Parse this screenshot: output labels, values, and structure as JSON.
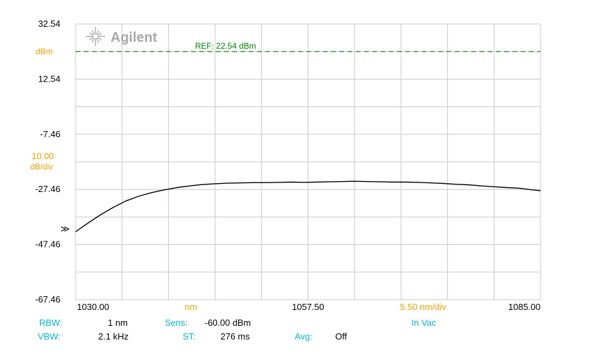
{
  "logo": {
    "text": "Agilent"
  },
  "marker": {
    "glyph": "≫"
  },
  "colors": {
    "grid": "#c8c8c8",
    "ref_line": "#008000",
    "trace": "#000000",
    "label_orange": "#e8a000",
    "label_cyan": "#00b4d8"
  },
  "chart_data": {
    "type": "line",
    "title": "",
    "xlabel": "nm",
    "ylabel": "dBm",
    "xlim": [
      1030.0,
      1085.0
    ],
    "ylim": [
      -67.46,
      32.54
    ],
    "grid": true,
    "x_divisions": 10,
    "y_divisions": 10,
    "y_ticks": [
      32.54,
      12.54,
      -7.46,
      -27.46,
      -47.46,
      -67.46
    ],
    "y_tick_labels": [
      "32.54",
      "12.54",
      "-7.46",
      "-27.46",
      "-47.46",
      "-67.46"
    ],
    "x_ticks": [
      1030.0,
      1057.5,
      1085.0
    ],
    "x_tick_labels": [
      "1030.00",
      "1057.50",
      "1085.00"
    ],
    "scale_label": "10.00",
    "scale_unit": "dB/div",
    "x_scale_label": "5.50 nm/div",
    "ref": {
      "value": 22.54,
      "label": "REF: 22.54 dBm"
    },
    "series": [
      {
        "x": [
          1030.0,
          1031.5,
          1033.0,
          1034.5,
          1036.0,
          1037.5,
          1039.0,
          1040.5,
          1042.0,
          1043.5,
          1045.0,
          1046.5,
          1048.0,
          1049.5,
          1051.0,
          1052.5,
          1054.0,
          1055.5,
          1057.0,
          1058.5,
          1060.0,
          1061.5,
          1063.0,
          1064.5,
          1066.0,
          1067.5,
          1069.0,
          1070.5,
          1072.0,
          1073.5,
          1075.0,
          1076.5,
          1078.0,
          1079.5,
          1081.0,
          1082.5,
          1084.0,
          1085.0
        ],
        "y": [
          -42.8,
          -39.6,
          -36.6,
          -33.9,
          -31.6,
          -29.9,
          -28.6,
          -27.6,
          -26.8,
          -26.2,
          -25.7,
          -25.4,
          -25.2,
          -25.1,
          -25.0,
          -25.0,
          -24.9,
          -24.8,
          -24.9,
          -24.8,
          -24.7,
          -24.6,
          -24.5,
          -24.6,
          -24.7,
          -24.8,
          -24.8,
          -24.9,
          -25.1,
          -25.3,
          -25.6,
          -25.8,
          -26.2,
          -26.5,
          -26.8,
          -27.0,
          -27.6,
          -27.9
        ]
      }
    ]
  },
  "settings": {
    "rbw": {
      "label": "RBW:",
      "value": "1 nm"
    },
    "vbw": {
      "label": "VBW:",
      "value": "2.1 kHz"
    },
    "sens": {
      "label": "Sens:",
      "value": "-60.00 dBm"
    },
    "st": {
      "label": "ST:",
      "value": "276 ms"
    },
    "avg": {
      "label": "Avg:",
      "value": "Off"
    },
    "medium": "In Vac"
  }
}
